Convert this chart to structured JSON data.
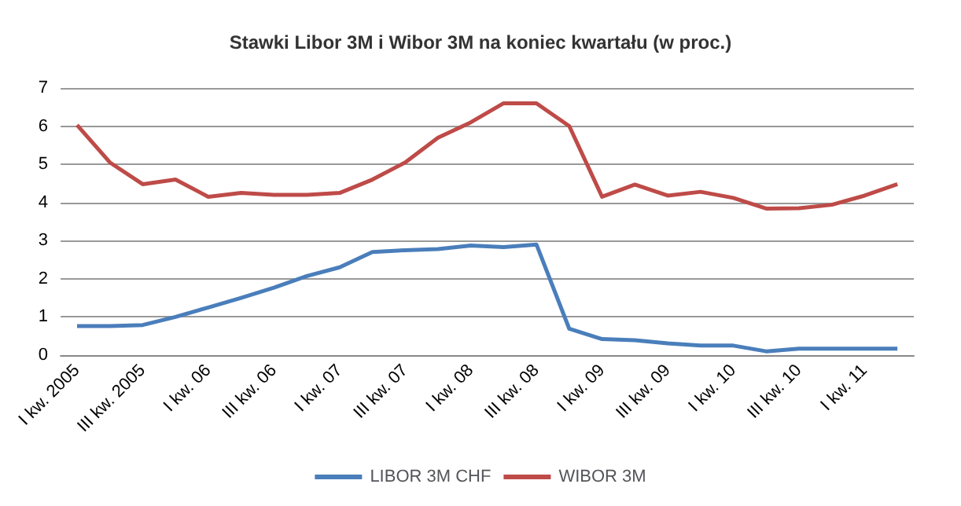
{
  "chart_data": {
    "type": "line",
    "title": "Stawki Libor 3M i Wibor 3M na koniec kwartału (w proc.)",
    "categories": [
      "I kw. 2005",
      null,
      "III kw. 2005",
      null,
      "I kw. 06",
      null,
      "III kw. 06",
      null,
      "I kw. 07",
      null,
      "III kw. 07",
      null,
      "I kw. 08",
      null,
      "III kw. 08",
      null,
      "I kw. 09",
      null,
      "III kw. 09",
      null,
      "I kw. 10",
      null,
      "III kw. 10",
      null,
      "I kw. 11",
      null
    ],
    "series": [
      {
        "name": "LIBOR 3M CHF",
        "color": "#4a7ebb",
        "values": [
          0.76,
          0.76,
          0.79,
          1.0,
          1.25,
          1.5,
          1.77,
          2.07,
          2.3,
          2.7,
          2.75,
          2.78,
          2.87,
          2.83,
          2.9,
          0.69,
          0.42,
          0.39,
          0.31,
          0.25,
          0.25,
          0.1,
          0.17,
          0.17,
          0.17,
          0.17
        ]
      },
      {
        "name": "WIBOR 3M",
        "color": "#be4b48",
        "values": [
          6.03,
          5.05,
          4.48,
          4.6,
          4.15,
          4.25,
          4.2,
          4.2,
          4.25,
          4.6,
          5.05,
          5.7,
          6.1,
          6.6,
          6.6,
          6.0,
          4.15,
          4.47,
          4.18,
          4.28,
          4.12,
          3.84,
          3.85,
          3.94,
          4.18,
          4.48
        ]
      }
    ],
    "ylim": [
      0,
      7
    ],
    "yticks": [
      0,
      1,
      2,
      3,
      4,
      5,
      6,
      7
    ],
    "grid": "y",
    "legend": "bottom",
    "marker": "none",
    "line_style": "solid"
  }
}
